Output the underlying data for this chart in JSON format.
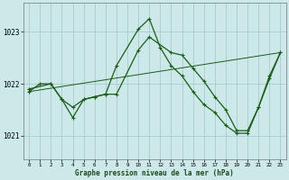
{
  "title": "Graphe pression niveau de la mer (hPa)",
  "background_color": "#cce8e8",
  "grid_color": "#aacccc",
  "line_color": "#1a5c1a",
  "xlim": [
    -0.5,
    23.5
  ],
  "ylim": [
    1020.55,
    1023.55
  ],
  "yticks": [
    1021,
    1022,
    1023
  ],
  "xticks": [
    0,
    1,
    2,
    3,
    4,
    5,
    6,
    7,
    8,
    9,
    10,
    11,
    12,
    13,
    14,
    15,
    16,
    17,
    18,
    19,
    20,
    21,
    22,
    23
  ],
  "series": [
    {
      "x": [
        0,
        1,
        2,
        3,
        4,
        5,
        6,
        7,
        8,
        10,
        11,
        12,
        13,
        14,
        15,
        16,
        17,
        18,
        19,
        20,
        21,
        22,
        23
      ],
      "y": [
        1021.85,
        1022.0,
        1022.0,
        1021.7,
        1021.55,
        1021.7,
        1021.75,
        1021.8,
        1022.35,
        1023.05,
        1023.25,
        1022.7,
        1022.35,
        1022.15,
        1021.85,
        1021.6,
        1021.45,
        1021.2,
        1021.05,
        1021.05,
        1021.55,
        1022.1,
        1022.6
      ]
    },
    {
      "x": [
        0,
        2,
        3,
        4,
        5,
        6,
        7,
        8,
        10,
        11,
        13,
        14,
        15,
        16,
        17,
        18,
        19,
        20,
        21,
        22,
        23
      ],
      "y": [
        1021.9,
        1022.0,
        1021.7,
        1021.35,
        1021.7,
        1021.75,
        1021.8,
        1021.8,
        1022.65,
        1022.9,
        1022.6,
        1022.55,
        1022.3,
        1022.05,
        1021.75,
        1021.5,
        1021.1,
        1021.1,
        1021.55,
        1022.15,
        1022.6
      ]
    },
    {
      "x": [
        0,
        23
      ],
      "y": [
        1021.85,
        1022.6
      ]
    }
  ]
}
